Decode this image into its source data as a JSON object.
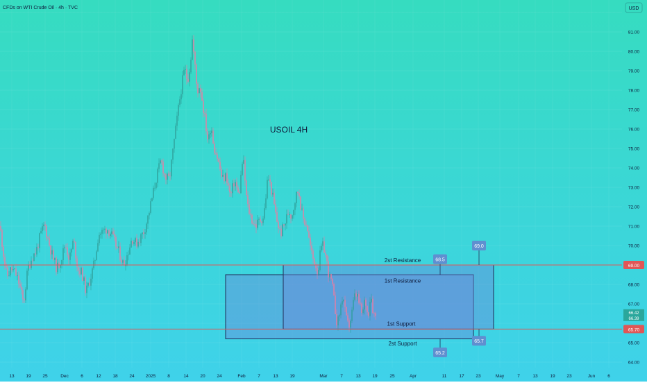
{
  "header": {
    "symbol_line": "CFDs on WTI Crude Oil · 4h · TVC",
    "currency_badge": "USD"
  },
  "chart_data": {
    "type": "candlestick",
    "title": "USOIL  4H",
    "y_axis": {
      "min": 64.0,
      "max": 82.0,
      "step": 1,
      "tick_labels": [
        "64.00",
        "65.00",
        "66.00",
        "67.00",
        "68.00",
        "69.00",
        "70.00",
        "71.00",
        "72.00",
        "73.00",
        "74.00",
        "75.00",
        "76.00",
        "77.00",
        "78.00",
        "79.00",
        "80.00",
        "81.00"
      ]
    },
    "x_axis": {
      "tick_labels": [
        "13",
        "19",
        "25",
        "Dec",
        "6",
        "12",
        "18",
        "24",
        "2025",
        "8",
        "14",
        "20",
        "24",
        "Feb",
        "7",
        "13",
        "19",
        "Mar",
        "7",
        "13",
        "19",
        "25",
        "Apr",
        "11",
        "17",
        "23",
        "May",
        "7",
        "13",
        "19",
        "23",
        "Jun",
        "6"
      ]
    },
    "price_path": [
      [
        0,
        71.0
      ],
      [
        6,
        69.3
      ],
      [
        10,
        68.4
      ],
      [
        16,
        68.8
      ],
      [
        22,
        68.6
      ],
      [
        28,
        68.0
      ],
      [
        34,
        67.0
      ],
      [
        40,
        68.8
      ],
      [
        46,
        69.4
      ],
      [
        52,
        69.7
      ],
      [
        58,
        70.5
      ],
      [
        64,
        71.1
      ],
      [
        70,
        70.2
      ],
      [
        76,
        69.4
      ],
      [
        82,
        68.8
      ],
      [
        88,
        69.3
      ],
      [
        94,
        70.1
      ],
      [
        100,
        69.3
      ],
      [
        106,
        70.3
      ],
      [
        112,
        68.8
      ],
      [
        118,
        68.6
      ],
      [
        124,
        67.6
      ],
      [
        130,
        68.3
      ],
      [
        136,
        69.1
      ],
      [
        142,
        70.6
      ],
      [
        148,
        70.7
      ],
      [
        154,
        70.9
      ],
      [
        160,
        70.6
      ],
      [
        166,
        70.1
      ],
      [
        172,
        69.6
      ],
      [
        178,
        69.0
      ],
      [
        184,
        69.6
      ],
      [
        190,
        70.4
      ],
      [
        196,
        70.1
      ],
      [
        202,
        70.4
      ],
      [
        208,
        70.8
      ],
      [
        214,
        71.6
      ],
      [
        220,
        72.6
      ],
      [
        226,
        73.6
      ],
      [
        232,
        74.4
      ],
      [
        238,
        73.5
      ],
      [
        244,
        73.4
      ],
      [
        250,
        75.1
      ],
      [
        256,
        76.8
      ],
      [
        262,
        78.3
      ],
      [
        266,
        79.1
      ],
      [
        270,
        78.5
      ],
      [
        274,
        79.3
      ],
      [
        277,
        80.6
      ],
      [
        280,
        79.6
      ],
      [
        284,
        77.9
      ],
      [
        288,
        78.3
      ],
      [
        292,
        77.3
      ],
      [
        296,
        76.3
      ],
      [
        300,
        75.3
      ],
      [
        304,
        76.3
      ],
      [
        308,
        75.1
      ],
      [
        312,
        74.7
      ],
      [
        316,
        74.1
      ],
      [
        320,
        73.4
      ],
      [
        326,
        73.6
      ],
      [
        332,
        72.5
      ],
      [
        338,
        73.4
      ],
      [
        344,
        72.5
      ],
      [
        350,
        74.6
      ],
      [
        356,
        72.1
      ],
      [
        362,
        71.4
      ],
      [
        368,
        71.0
      ],
      [
        374,
        71.3
      ],
      [
        380,
        71.5
      ],
      [
        386,
        73.6
      ],
      [
        392,
        72.7
      ],
      [
        398,
        71.4
      ],
      [
        404,
        70.6
      ],
      [
        410,
        71.1
      ],
      [
        416,
        71.8
      ],
      [
        420,
        71.5
      ],
      [
        426,
        72.5
      ],
      [
        430,
        72.9
      ],
      [
        436,
        71.4
      ],
      [
        442,
        71.1
      ],
      [
        446,
        70.1
      ],
      [
        450,
        69.4
      ],
      [
        454,
        69.1
      ],
      [
        458,
        68.6
      ],
      [
        462,
        69.8
      ],
      [
        466,
        70.0
      ],
      [
        470,
        69.3
      ],
      [
        474,
        68.4
      ],
      [
        478,
        68.1
      ],
      [
        482,
        66.9
      ],
      [
        486,
        65.9
      ],
      [
        490,
        66.7
      ],
      [
        494,
        67.5
      ],
      [
        498,
        66.3
      ],
      [
        502,
        65.8
      ],
      [
        506,
        66.3
      ],
      [
        510,
        67.3
      ],
      [
        514,
        67.5
      ],
      [
        518,
        66.9
      ],
      [
        522,
        66.4
      ],
      [
        526,
        67.3
      ],
      [
        530,
        66.3
      ],
      [
        534,
        67.6
      ],
      [
        538,
        66.5
      ],
      [
        541,
        66.4
      ]
    ],
    "horizontal_lines": [
      {
        "price": 69.0,
        "label": "69.00"
      },
      {
        "price": 65.7,
        "label": "65.70"
      }
    ],
    "zones": [
      {
        "name": "outer",
        "from_price": 65.2,
        "to_price": 68.5
      },
      {
        "name": "inner",
        "from_price": 65.7,
        "to_price": 69.0
      }
    ],
    "annotations": [
      {
        "text": "2st Resistance",
        "price": 69.25
      },
      {
        "text": "1st Resistance",
        "price": 68.2
      },
      {
        "text": "1st Support",
        "price": 65.98
      },
      {
        "text": "2st Support",
        "price": 64.97
      }
    ],
    "value_callouts": [
      {
        "text": "68.5",
        "price": 68.5,
        "box_price": 69.3
      },
      {
        "text": "69.0",
        "price": 69.0,
        "box_price": 70.0
      },
      {
        "text": "65.2",
        "price": 65.2,
        "box_price": 64.5
      },
      {
        "text": "65.7",
        "price": 65.7,
        "box_price": 65.1
      }
    ],
    "last_price_badges": [
      "66.42",
      "66.39"
    ],
    "colors": {
      "background_top": "#36dcc0",
      "background_bottom": "#3fd2ea",
      "level_line": "#e05656",
      "zone_fill": "#6e86d9",
      "zone_border": "#1f2a55",
      "candle_up": "#2f9f9a",
      "candle_down": "#ee7aa0",
      "text": "#0e1a3a",
      "callout": "#5f8fd0"
    }
  }
}
